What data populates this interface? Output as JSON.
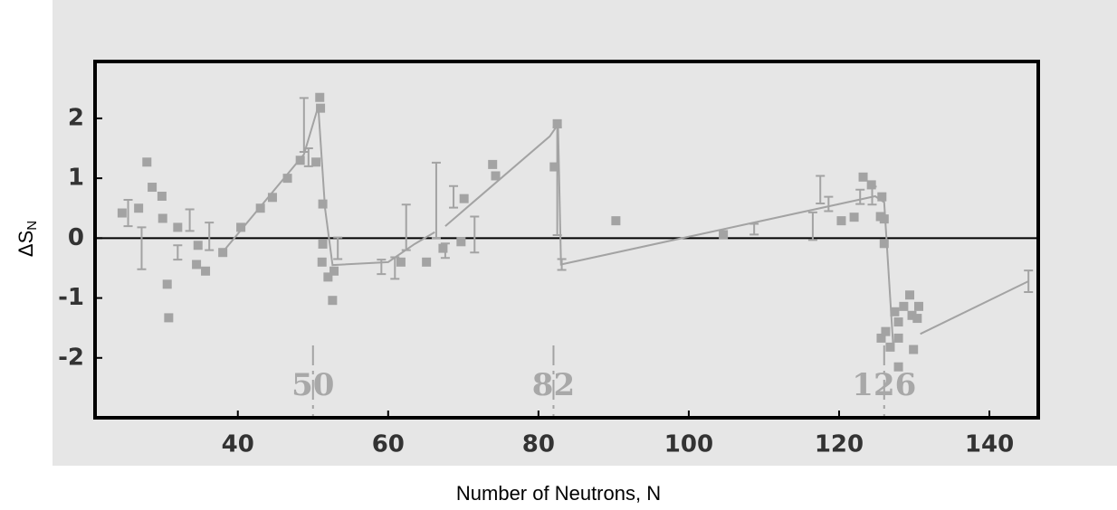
{
  "chart_data": {
    "type": "scatter",
    "xlabel": "Number of Neutrons, N",
    "ylabel": {
      "text": "ΔS",
      "subscript": "N"
    },
    "xlim": [
      21,
      146.5
    ],
    "ylim": [
      -3,
      2.95
    ],
    "xticks": [
      40,
      60,
      80,
      100,
      120,
      140
    ],
    "yticks": [
      -2,
      -1,
      0,
      1,
      2
    ],
    "color": "#a3a3a3",
    "points": {
      "x": [
        24.6,
        26.8,
        27.9,
        28.6,
        29.9,
        30.6,
        30.8,
        30.0,
        32.0,
        34.7,
        34.5,
        35.7,
        38.0,
        40.4,
        43.0,
        44.6,
        46.6,
        48.3,
        50.9,
        51.0,
        50.4,
        51.3,
        51.3,
        51.2,
        52.0,
        52.6,
        52.8,
        61.7,
        65.1,
        67.3,
        69.7,
        70.1,
        73.9,
        74.3,
        82.1,
        82.5,
        90.3,
        104.6,
        120.3,
        122.0,
        123.2,
        124.3,
        125.7,
        125.5,
        126.0,
        126.0,
        125.6,
        126.2,
        126.8,
        127.4,
        127.9,
        127.9,
        127.9,
        128.6,
        129.4,
        129.7,
        129.9,
        130.6,
        130.4
      ],
      "y": [
        0.42,
        0.5,
        1.27,
        0.85,
        0.7,
        -0.77,
        -1.33,
        0.33,
        0.18,
        -0.12,
        -0.44,
        -0.55,
        -0.24,
        0.18,
        0.5,
        0.68,
        1.0,
        1.3,
        2.35,
        2.17,
        1.27,
        0.57,
        -0.1,
        -0.4,
        -0.65,
        -1.04,
        -0.55,
        -0.4,
        -0.4,
        -0.17,
        -0.06,
        0.66,
        1.23,
        1.04,
        1.19,
        1.91,
        0.29,
        0.06,
        0.29,
        0.35,
        1.02,
        0.89,
        0.69,
        0.36,
        -0.09,
        0.32,
        -1.67,
        -1.56,
        -1.82,
        -1.23,
        -1.4,
        -1.67,
        -2.15,
        -1.14,
        -0.95,
        -1.29,
        -1.86,
        -1.14,
        -1.34
      ]
    },
    "error_bars": {
      "x": [
        25.4,
        27.2,
        32.0,
        33.6,
        36.2,
        48.8,
        49.4,
        53.3,
        59.1,
        60.9,
        62.4,
        66.4,
        67.6,
        68.7,
        71.5,
        82.5,
        83.1,
        108.7,
        116.5,
        117.5,
        118.6,
        122.8,
        124.4,
        145.2
      ],
      "y": [
        0.42,
        -0.17,
        -0.24,
        0.3,
        0.03,
        1.89,
        1.35,
        -0.17,
        -0.48,
        -0.5,
        0.18,
        0.63,
        -0.21,
        0.69,
        0.06,
        0.95,
        -0.44,
        0.15,
        0.2,
        0.81,
        0.57,
        0.69,
        0.71,
        -0.72
      ],
      "err": [
        0.22,
        0.35,
        0.12,
        0.18,
        0.23,
        0.45,
        0.15,
        0.18,
        0.12,
        0.18,
        0.38,
        0.63,
        0.12,
        0.18,
        0.3,
        0.9,
        0.09,
        0.09,
        0.23,
        0.23,
        0.12,
        0.12,
        0.15,
        0.18
      ]
    },
    "line": {
      "x": [
        38.2,
        48.8,
        50.7,
        51.6,
        52.6,
        60.0,
        63.5,
        66.2,
        null,
        67.6,
        81.5,
        82.6,
        83.0,
        124.8,
        126.0,
        127.2,
        null,
        130.8,
        145.2
      ],
      "y": [
        -0.2,
        1.4,
        2.2,
        0.5,
        -0.45,
        -0.4,
        -0.1,
        0.1,
        null,
        0.2,
        1.7,
        1.9,
        -0.44,
        0.7,
        0.6,
        -1.8,
        null,
        -1.6,
        -0.72
      ]
    },
    "magic_numbers": [
      50,
      82,
      126
    ]
  }
}
